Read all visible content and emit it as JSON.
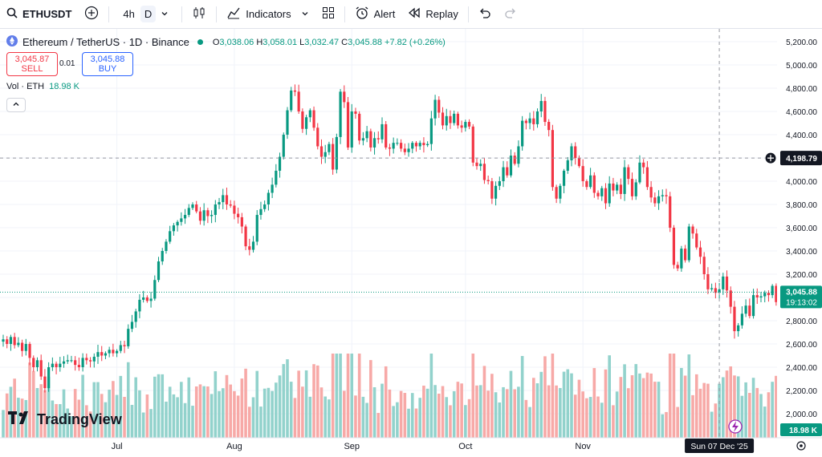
{
  "toolbar": {
    "symbol": "ETHUSDT",
    "interval_4h": "4h",
    "interval_d": "D",
    "indicators_label": "Indicators",
    "alert_label": "Alert",
    "replay_label": "Replay"
  },
  "legend": {
    "title": "Ethereum / TetherUS · 1D · Binance",
    "o_label": "O",
    "open": "3,038.06",
    "h_label": "H",
    "high": "3,058.01",
    "l_label": "L",
    "low": "3,032.47",
    "c_label": "C",
    "close": "3,045.88",
    "change": "+7.82 (+0.26%)"
  },
  "trade": {
    "sell_price": "3,045.87",
    "sell_label": "SELL",
    "spread": "0.01",
    "buy_price": "3,045.88",
    "buy_label": "BUY"
  },
  "volume_legend": {
    "label": "Vol · ETH",
    "value": "18.98 K"
  },
  "price_scale": {
    "crosshair_price": "4,198.79",
    "last_price": "3,045.88",
    "countdown": "19:13:02",
    "volume_value": "18.98 K"
  },
  "time_scale": {
    "crosshair_date": "Sun 07 Dec '25"
  },
  "logo_text": "TradingView",
  "colors": {
    "up": "#089981",
    "down": "#f23645",
    "up_vol": "#92d2cc",
    "down_vol": "#f7a9a7"
  },
  "chart_data": {
    "type": "candlestick",
    "title": "Ethereum / TetherUS · 1D · Binance",
    "ylim": [
      1750,
      5320
    ],
    "yticks": [
      "5,200.00",
      "5,000.00",
      "4,800.00",
      "4,600.00",
      "4,400.00",
      "4,200.00",
      "4,000.00",
      "3,800.00",
      "3,600.00",
      "3,400.00",
      "3,200.00",
      "3,000.00",
      "2,800.00",
      "2,600.00",
      "2,400.00",
      "2,200.00",
      "2,000.00"
    ],
    "ytick_values": [
      5200,
      5000,
      4800,
      4600,
      4400,
      4200,
      4000,
      3800,
      3600,
      3400,
      3200,
      3000,
      2800,
      2600,
      2400,
      2200,
      2000
    ],
    "month_labels": [
      {
        "label": "Jul",
        "index": 30
      },
      {
        "label": "Aug",
        "index": 61
      },
      {
        "label": "Sep",
        "index": 92
      },
      {
        "label": "Oct",
        "index": 122
      },
      {
        "label": "Nov",
        "index": 153
      }
    ],
    "crosshair_index": 189,
    "crosshair_value": 4198.79,
    "last_value": 3045.88,
    "closes": [
      2640,
      2600,
      2660,
      2590,
      2610,
      2540,
      2600,
      2480,
      2400,
      2460,
      2320,
      2220,
      2400,
      2430,
      2400,
      2430,
      2450,
      2460,
      2460,
      2420,
      2400,
      2480,
      2460,
      2450,
      2490,
      2530,
      2500,
      2520,
      2550,
      2520,
      2540,
      2590,
      2580,
      2730,
      2790,
      2880,
      2980,
      3000,
      2970,
      2990,
      3150,
      3310,
      3400,
      3480,
      3570,
      3620,
      3650,
      3680,
      3710,
      3770,
      3800,
      3740,
      3660,
      3750,
      3700,
      3710,
      3800,
      3820,
      3880,
      3800,
      3790,
      3720,
      3690,
      3610,
      3440,
      3410,
      3480,
      3710,
      3760,
      3800,
      3900,
      3970,
      4090,
      4210,
      4400,
      4610,
      4780,
      4770,
      4600,
      4450,
      4550,
      4610,
      4460,
      4300,
      4210,
      4250,
      4320,
      4100,
      4380,
      4770,
      4680,
      4290,
      4600,
      4580,
      4350,
      4370,
      4430,
      4290,
      4370,
      4360,
      4490,
      4290,
      4280,
      4330,
      4330,
      4280,
      4250,
      4280,
      4330,
      4300,
      4330,
      4310,
      4320,
      4540,
      4700,
      4590,
      4480,
      4560,
      4500,
      4580,
      4480,
      4460,
      4510,
      4470,
      4160,
      4130,
      4150,
      4010,
      4000,
      3850,
      3960,
      4000,
      4120,
      4050,
      4220,
      4150,
      4300,
      4520,
      4500,
      4540,
      4490,
      4600,
      4690,
      4510,
      4440,
      3950,
      3850,
      3960,
      4090,
      4180,
      4300,
      4200,
      4130,
      4000,
      3950,
      4050,
      3900,
      3870,
      3940,
      3810,
      3980,
      3920,
      3970,
      3890,
      4120,
      4020,
      3870,
      3990,
      4160,
      4120,
      3950,
      3860,
      3810,
      3870,
      3880,
      3870,
      3600,
      3280,
      3250,
      3420,
      3320,
      3610,
      3550,
      3430,
      3350,
      3200,
      3070,
      3080,
      3040,
      3070,
      3180,
      3060,
      2920,
      2710,
      2760,
      2860,
      2930,
      2840,
      3020,
      3000,
      3010,
      3040,
      3020,
      3100,
      2960,
      2900,
      3180,
      3150,
      3020,
      3040
    ]
  }
}
